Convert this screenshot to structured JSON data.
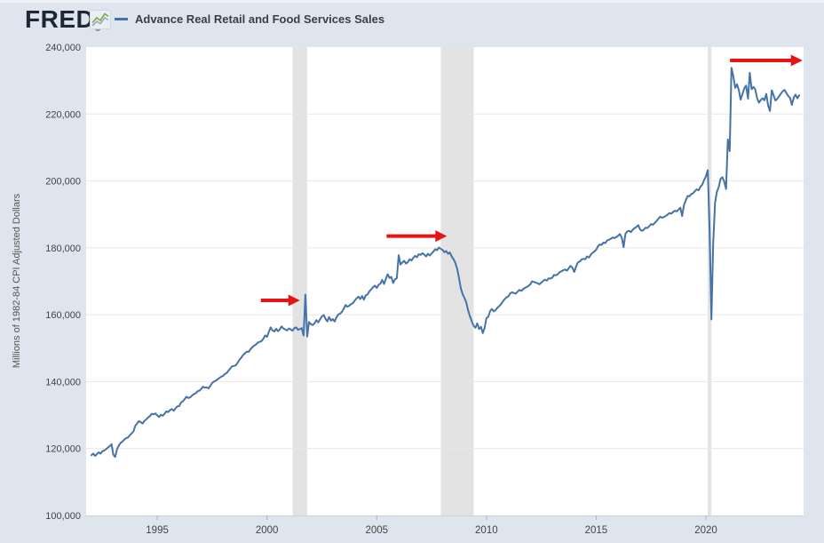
{
  "header": {
    "logo_text": "FRED",
    "registered_mark": "®",
    "legend": {
      "series_label": "Advance Real Retail and Food Services Sales"
    }
  },
  "colors": {
    "page_bg": "#dfe5ee",
    "plot_bg": "#ffffff",
    "line": "#4572a7",
    "recession_band": "#e3e3e3",
    "gridline": "#e7e7e7",
    "axis_line": "#d0d0d0",
    "tick_text": "#444444",
    "arrow": "#e81313",
    "logo": "#1e2736"
  },
  "chart_data": {
    "type": "line",
    "title": "Advance Real Retail and Food Services Sales",
    "ylabel": "Millions of 1982-84 CPI Adjusted Dollars",
    "xlabel": "",
    "legend_position": "top",
    "grid": "horizontal",
    "xlim": [
      1991.76,
      2024.45
    ],
    "ylim": [
      100000,
      240000
    ],
    "x_start": 1992.0,
    "x_step": 0.0833333,
    "x_ticks": [
      {
        "value": 1995,
        "label": "1995"
      },
      {
        "value": 2000,
        "label": "2000"
      },
      {
        "value": 2005,
        "label": "2005"
      },
      {
        "value": 2010,
        "label": "2010"
      },
      {
        "value": 2015,
        "label": "2015"
      },
      {
        "value": 2020,
        "label": "2020"
      }
    ],
    "y_ticks": [
      {
        "value": 100000,
        "label": "100,000"
      },
      {
        "value": 120000,
        "label": "120,000"
      },
      {
        "value": 140000,
        "label": "140,000"
      },
      {
        "value": 160000,
        "label": "160,000"
      },
      {
        "value": 180000,
        "label": "180,000"
      },
      {
        "value": 200000,
        "label": "200,000"
      },
      {
        "value": 220000,
        "label": "220,000"
      },
      {
        "value": 240000,
        "label": "240,000"
      }
    ],
    "y_gridlines": [
      120000,
      140000,
      160000,
      180000,
      200000,
      220000
    ],
    "recessions": [
      {
        "start": 2001.17,
        "end": 2001.83
      },
      {
        "start": 2007.92,
        "end": 2009.42
      },
      {
        "start": 2020.08,
        "end": 2020.25
      }
    ],
    "annotations": [
      {
        "type": "arrow",
        "x1": 1999.72,
        "x2": 2001.5,
        "y": 164300
      },
      {
        "type": "arrow",
        "x1": 2005.45,
        "x2": 2008.2,
        "y": 183500
      },
      {
        "type": "arrow",
        "x1": 2021.1,
        "x2": 2024.4,
        "y": 236000
      }
    ],
    "values": [
      118000,
      118500,
      117800,
      118300,
      118900,
      118500,
      119200,
      119400,
      119800,
      120300,
      120700,
      121300,
      118200,
      117500,
      119800,
      120900,
      121700,
      122100,
      122700,
      123100,
      123300,
      124000,
      124500,
      125100,
      126800,
      127500,
      128200,
      127900,
      127500,
      128300,
      128700,
      129300,
      129700,
      130400,
      130200,
      130500,
      129900,
      129400,
      130100,
      129800,
      130400,
      131100,
      130900,
      131500,
      131800,
      131300,
      132000,
      132600,
      132700,
      133800,
      134100,
      134800,
      135500,
      135100,
      135300,
      135800,
      136300,
      136500,
      137100,
      137300,
      137800,
      138500,
      138200,
      138300,
      138000,
      138700,
      139600,
      140000,
      140300,
      140700,
      141100,
      141500,
      141700,
      142300,
      142600,
      143300,
      144000,
      144600,
      144700,
      144900,
      145700,
      146600,
      147200,
      148000,
      148500,
      149000,
      148900,
      149700,
      150300,
      150800,
      151100,
      151700,
      151900,
      152100,
      152800,
      153800,
      153400,
      154800,
      156200,
      155300,
      155000,
      155800,
      155100,
      155600,
      156500,
      155900,
      155600,
      155300,
      155900,
      155600,
      155200,
      156000,
      156200,
      155500,
      155700,
      156000,
      153800,
      166000,
      153500,
      157800,
      157200,
      156900,
      157400,
      158400,
      157700,
      158600,
      159500,
      159900,
      158800,
      158000,
      159300,
      158200,
      158700,
      158000,
      159200,
      160100,
      160300,
      160900,
      161800,
      162900,
      162400,
      162700,
      163200,
      163500,
      164200,
      164900,
      165400,
      164700,
      165600,
      164500,
      165800,
      166100,
      167000,
      167600,
      168200,
      168700,
      168000,
      168900,
      169300,
      170400,
      169200,
      170800,
      172100,
      171000,
      171300,
      169500,
      170600,
      170900,
      177800,
      175000,
      175600,
      176100,
      175300,
      175700,
      176600,
      176200,
      177000,
      177600,
      177200,
      178100,
      177900,
      178400,
      178000,
      177400,
      178200,
      177700,
      178300,
      178900,
      179600,
      179300,
      180100,
      179700,
      179400,
      178700,
      179000,
      178200,
      178600,
      177400,
      176600,
      175500,
      173700,
      171000,
      167900,
      166100,
      165000,
      163600,
      161300,
      159500,
      158000,
      156700,
      156100,
      157400,
      155700,
      156400,
      154500,
      156100,
      159000,
      159400,
      161100,
      161700,
      161000,
      161400,
      162100,
      162600,
      163200,
      164000,
      164700,
      165200,
      165500,
      166400,
      166700,
      166500,
      166300,
      166900,
      167400,
      167100,
      167600,
      168000,
      168300,
      168600,
      169100,
      170000,
      169800,
      169600,
      169400,
      169100,
      169600,
      170100,
      170500,
      170200,
      170900,
      170800,
      171100,
      171900,
      171800,
      172100,
      172700,
      173000,
      173300,
      173500,
      173200,
      173900,
      174600,
      174100,
      172800,
      174400,
      175600,
      175900,
      176500,
      176700,
      176600,
      177400,
      177100,
      177900,
      178500,
      178900,
      179400,
      180500,
      181000,
      180900,
      181600,
      181400,
      182200,
      182400,
      182700,
      183100,
      182900,
      183200,
      183600,
      184100,
      183000,
      180200,
      184200,
      184900,
      185100,
      184700,
      185400,
      185900,
      186200,
      186800,
      185500,
      185100,
      185400,
      186000,
      185900,
      186500,
      187100,
      186900,
      187400,
      188000,
      188700,
      189300,
      189000,
      189200,
      189500,
      189900,
      190400,
      190200,
      190700,
      191100,
      190900,
      191400,
      192000,
      189500,
      192800,
      194200,
      195500,
      195400,
      196100,
      196300,
      197000,
      197500,
      197200,
      198200,
      198900,
      200200,
      201400,
      203200,
      186000,
      158600,
      181200,
      193400,
      196800,
      198100,
      200600,
      201100,
      199800,
      197600,
      212400,
      208900,
      233800,
      231200,
      227800,
      228900,
      227100,
      224300,
      226000,
      227700,
      228500,
      224600,
      232300,
      227400,
      228100,
      227300,
      224700,
      223400,
      224200,
      224700,
      224100,
      226000,
      222600,
      220900,
      227100,
      225600,
      224000,
      224500,
      225300,
      226100,
      226800,
      227200,
      226300,
      225400,
      224800,
      222700,
      224900,
      225800,
      224700,
      225600
    ]
  }
}
